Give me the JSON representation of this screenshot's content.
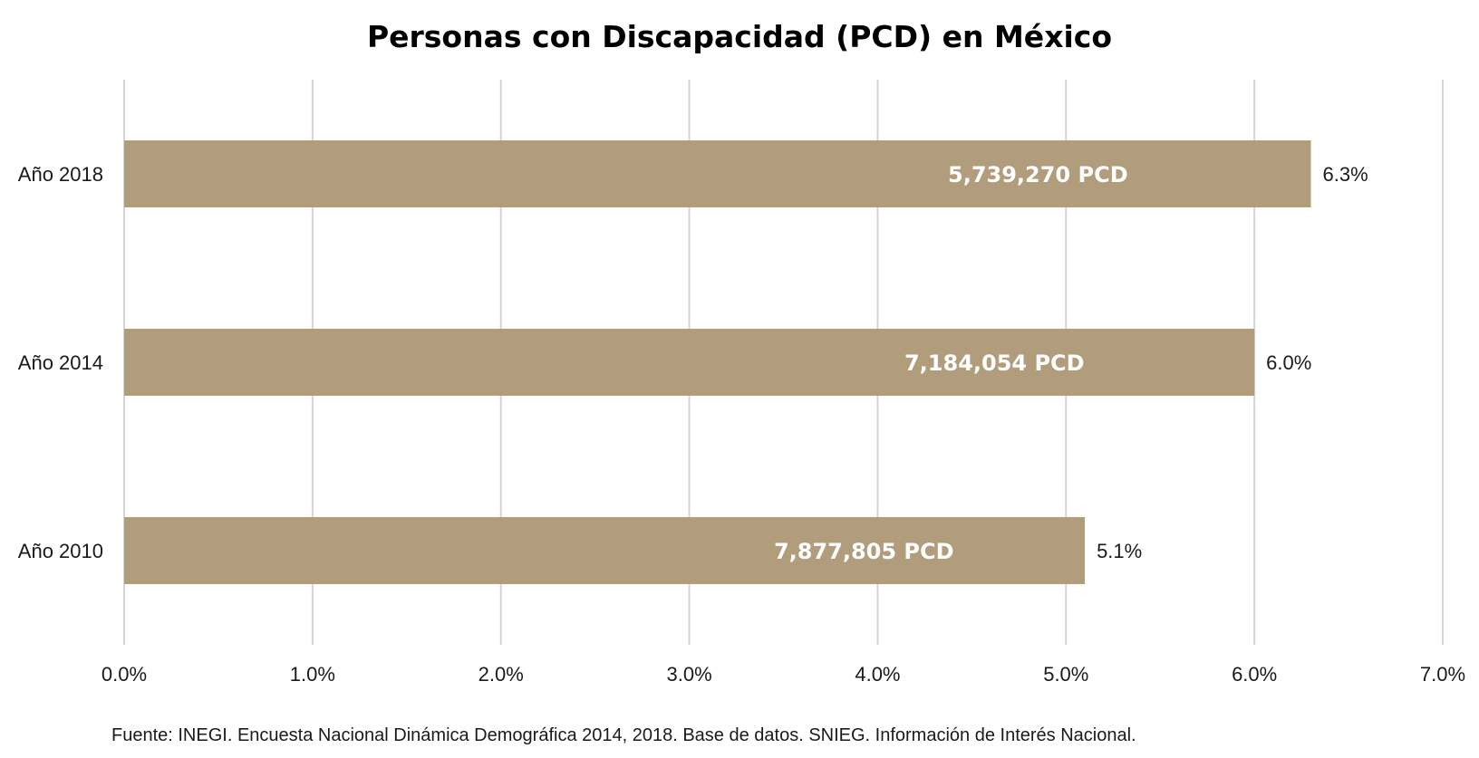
{
  "chart_data": {
    "type": "bar",
    "orientation": "horizontal",
    "title": "Personas con Discapacidad (PCD) en México",
    "categories": [
      "Año 2018",
      "Año 2014",
      "Año 2010"
    ],
    "values": [
      6.3,
      6.0,
      5.1
    ],
    "value_labels": [
      "6.3%",
      "6.0%",
      "5.1%"
    ],
    "bar_labels": [
      "5,739,270 PCD",
      "7,184,054 PCD",
      "7,877,805 PCD"
    ],
    "xlim": [
      0,
      7
    ],
    "x_ticks": [
      0,
      1,
      2,
      3,
      4,
      5,
      6,
      7
    ],
    "x_tick_labels": [
      "0.0%",
      "1.0%",
      "2.0%",
      "3.0%",
      "4.0%",
      "5.0%",
      "6.0%",
      "7.0%"
    ],
    "grid": true,
    "bar_color": "#b19c7c",
    "source": "Fuente: INEGI. Encuesta Nacional Dinámica Demográfica 2014, 2018. Base de datos. SNIEG. Información de Interés Nacional."
  }
}
